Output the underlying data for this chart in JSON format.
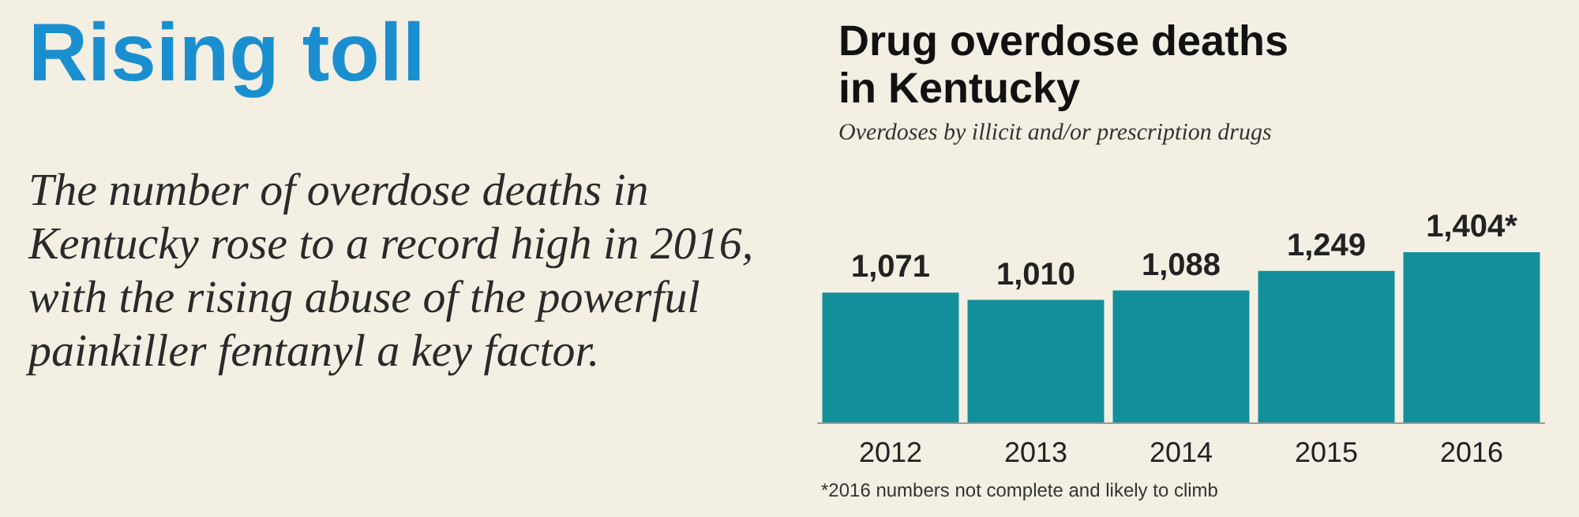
{
  "chart_data": {
    "type": "bar",
    "title": "Drug overdose deaths in Kentucky",
    "subtitle": "Overdoses by illicit and/or prescription drugs",
    "annotations": [
      "Rising toll",
      "The number of overdose deaths in Kentucky rose to a record high in 2016, with the rising abuse of the powerful painkiller fentanyl a key factor.",
      "*2016 numbers not complete and likely to climb"
    ],
    "categories": [
      "2012",
      "2013",
      "2014",
      "2015",
      "2016"
    ],
    "values": [
      1071,
      1010,
      1088,
      1249,
      1404
    ],
    "value_labels": [
      "1,071",
      "1,010",
      "1,088",
      "1,249",
      "1,404*"
    ],
    "color": "#138f9b"
  }
}
